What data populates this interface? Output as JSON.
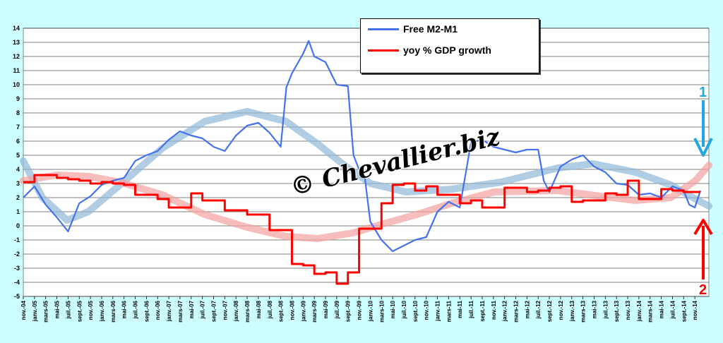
{
  "colors": {
    "m2m1": "#4472ee",
    "gdp": "#ff0000",
    "m2m1_trend": "#8fb8d8",
    "gdp_trend": "#f4a0a0",
    "arrow1": "#21a8e0",
    "arrow2": "#ff0000",
    "background": "#ccffff",
    "plot": "#ffffff"
  },
  "watermark": "© Chevallier.biz",
  "markers": {
    "one": "1",
    "two": "2"
  },
  "chart_data": {
    "type": "line",
    "title": "",
    "xlabel": "",
    "ylabel": "",
    "ylim": [
      -5,
      14
    ],
    "yticks": [
      -5,
      -4,
      -3,
      -2,
      -1,
      0,
      1,
      2,
      3,
      4,
      5,
      6,
      7,
      8,
      9,
      10,
      11,
      12,
      13,
      14
    ],
    "grid": "horizontal",
    "legend_position": "top-center",
    "x_range": [
      "nov.-04",
      "janv.-15"
    ],
    "xtick_labels": [
      "nov.-04",
      "janv.-05",
      "mars-05",
      "mai-05",
      "juil.-05",
      "sept.-05",
      "nov.-05",
      "janv.-06",
      "mars-06",
      "mai-06",
      "juil.-06",
      "sept.-06",
      "nov.-06",
      "janv.-07",
      "mars-07",
      "mai-07",
      "juil.-07",
      "sept.-07",
      "nov.-07",
      "janv.-08",
      "mars-08",
      "mai-08",
      "juil.-08",
      "sept.-08",
      "nov.-08",
      "janv.-09",
      "mars-09",
      "mai-09",
      "juil.-09",
      "sept.-09",
      "nov.-09",
      "janv.-10",
      "mars-10",
      "mai-10",
      "juil.-10",
      "sept.-10",
      "nov.-10",
      "janv.-11",
      "mars-11",
      "mai-11",
      "juil.-11",
      "sept.-11",
      "nov.-11",
      "janv.-12",
      "mars-12",
      "mai-12",
      "juil.-12",
      "sept.-12",
      "nov.-12",
      "janv.-13",
      "mars-13",
      "mai-13",
      "juil.-13",
      "sept.-13",
      "nov.-13",
      "janv.-14",
      "mars-14",
      "mai-14",
      "juil.-14",
      "sept.-14",
      "nov.-14"
    ],
    "series": [
      {
        "name": "Free M2-M1",
        "x": [
          "nov.-04",
          "janv.-05",
          "mars-05",
          "mai-05",
          "juil.-05",
          "sept.-05",
          "nov.-05",
          "janv.-06",
          "mars-06",
          "mai-06",
          "juil.-06",
          "sept.-06",
          "nov.-06",
          "janv.-07",
          "mars-07",
          "mai-07",
          "juil.-07",
          "sept.-07",
          "nov.-07",
          "janv.-08",
          "mars-08",
          "mai-08",
          "juil.-08",
          "sept.-08",
          "oct.-08",
          "nov.-08",
          "janv.-09",
          "févr.-09",
          "mars-09",
          "mai-09",
          "juil.-09",
          "sept.-09",
          "oct.-09",
          "nov.-09",
          "déc.-09",
          "janv.-10",
          "mars-10",
          "mai-10",
          "juil.-10",
          "sept.-10",
          "nov.-10",
          "janv.-11",
          "mars-11",
          "mai-11",
          "juil.-11",
          "sept.-11",
          "nov.-11",
          "janv.-12",
          "mars-12",
          "mai-12",
          "juil.-12",
          "août-12",
          "sept.-12",
          "nov.-12",
          "janv.-13",
          "mars-13",
          "mai-13",
          "juil.-13",
          "sept.-13",
          "nov.-13",
          "janv.-14",
          "mars-14",
          "mai-14",
          "juil.-14",
          "sept.-14",
          "oct.-14",
          "nov.-14",
          "déc.-14"
        ],
        "values": [
          2.0,
          2.8,
          1.5,
          0.6,
          -0.4,
          1.6,
          2.1,
          2.9,
          3.2,
          3.4,
          4.6,
          5.0,
          5.3,
          6.1,
          6.7,
          6.4,
          6.2,
          5.6,
          5.3,
          6.4,
          7.1,
          7.3,
          6.6,
          5.6,
          9.8,
          10.8,
          12.2,
          13.1,
          12.0,
          11.6,
          10.0,
          9.9,
          5.0,
          4.0,
          3.5,
          0.3,
          -1.0,
          -1.8,
          -1.4,
          -1.0,
          -0.8,
          1.0,
          1.7,
          1.3,
          5.9,
          6.1,
          5.6,
          5.4,
          5.2,
          5.4,
          5.4,
          3.2,
          2.4,
          4.2,
          4.7,
          5.0,
          4.2,
          3.8,
          3.0,
          2.9,
          2.2,
          2.3,
          2.0,
          2.8,
          2.5,
          1.5,
          1.3,
          2.5
        ]
      },
      {
        "name": "yoy % GDP growth",
        "x": [
          "nov.-04",
          "déc.-04",
          "janv.-05",
          "mai-05",
          "juil.-05",
          "sept.-05",
          "nov.-05",
          "janv.-06",
          "mars-06",
          "mai-06",
          "juil.-06",
          "sept.-06",
          "nov.-06",
          "janv.-07",
          "mars-07",
          "mai-07",
          "juil.-07",
          "sept.-07",
          "nov.-07",
          "janv.-08",
          "mars-08",
          "mai-08",
          "juil.-08",
          "sept.-08",
          "nov.-08",
          "janv.-09",
          "mars-09",
          "mai-09",
          "juil.-09",
          "sept.-09",
          "nov.-09",
          "janv.-10",
          "mars-10",
          "mai-10",
          "juil.-10",
          "sept.-10",
          "nov.-10",
          "janv.-11",
          "mars-11",
          "mai-11",
          "juil.-11",
          "sept.-11",
          "nov.-11",
          "janv.-12",
          "mars-12",
          "mai-12",
          "juil.-12",
          "sept.-12",
          "nov.-12",
          "janv.-13",
          "mars-13",
          "mai-13",
          "juil.-13",
          "sept.-13",
          "nov.-13",
          "janv.-14",
          "mars-14",
          "mai-14",
          "juil.-14",
          "sept.-14",
          "nov.-14",
          "déc.-14"
        ],
        "values": [
          3.1,
          3.1,
          3.6,
          3.4,
          3.3,
          3.2,
          3.0,
          3.1,
          3.0,
          2.9,
          2.2,
          2.2,
          1.9,
          1.3,
          1.3,
          2.3,
          1.8,
          1.8,
          1.1,
          1.1,
          0.8,
          0.8,
          -0.3,
          -0.3,
          -2.7,
          -2.8,
          -3.4,
          -3.3,
          -4.1,
          -3.3,
          -0.2,
          -0.2,
          1.6,
          2.9,
          3.0,
          2.5,
          2.8,
          2.2,
          2.2,
          1.6,
          1.8,
          1.3,
          1.3,
          2.7,
          2.7,
          2.4,
          2.5,
          2.7,
          2.8,
          1.7,
          1.8,
          1.8,
          2.3,
          2.2,
          3.2,
          1.9,
          1.9,
          2.6,
          2.5,
          2.4,
          2.4,
          2.4
        ]
      }
    ]
  }
}
